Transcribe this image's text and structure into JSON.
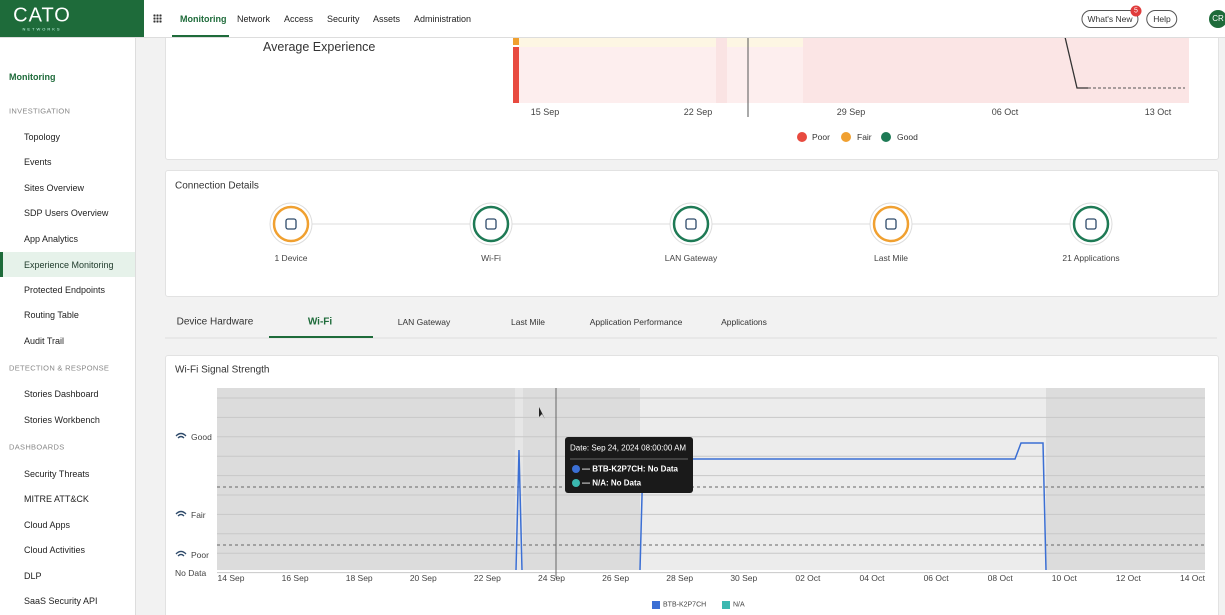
{
  "header": {
    "logo": "CATO",
    "logo_sub": "NETWORKS",
    "nav": [
      "Monitoring",
      "Network",
      "Access",
      "Security",
      "Assets",
      "Administration"
    ],
    "whats_new": "What's New",
    "badge": "5",
    "help": "Help",
    "avatar": "CR"
  },
  "sidebar": {
    "title": "Monitoring",
    "sections": [
      {
        "label": "INVESTIGATION",
        "items": [
          "Topology",
          "Events",
          "Sites Overview",
          "SDP Users Overview",
          "App Analytics",
          "Experience Monitoring",
          "Protected Endpoints",
          "Routing Table",
          "Audit Trail"
        ]
      },
      {
        "label": "DETECTION & RESPONSE",
        "items": [
          "Stories Dashboard",
          "Stories Workbench"
        ]
      },
      {
        "label": "DASHBOARDS",
        "items": [
          "Security Threats",
          "MITRE ATT&CK",
          "Cloud Apps",
          "Cloud Activities",
          "DLP",
          "SaaS Security API"
        ]
      }
    ]
  },
  "experience": {
    "title": "Average Experience",
    "x_labels": [
      "15 Sep",
      "22 Sep",
      "29 Sep",
      "06 Oct",
      "13 Oct"
    ],
    "legend": [
      "Poor",
      "Fair",
      "Good"
    ]
  },
  "connection": {
    "title": "Connection Details",
    "nodes": [
      "1 Device",
      "Wi-Fi",
      "LAN Gateway",
      "Last Mile",
      "21 Applications"
    ]
  },
  "tabs": [
    "Device Hardware",
    "Wi-Fi",
    "LAN Gateway",
    "Last Mile",
    "Application Performance",
    "Applications"
  ],
  "wifi": {
    "title": "Wi-Fi Signal Strength",
    "y_labels": [
      "Good",
      "Fair",
      "Poor",
      "No Data"
    ],
    "x_labels": [
      "14 Sep",
      "16 Sep",
      "18 Sep",
      "20 Sep",
      "22 Sep",
      "24 Sep",
      "26 Sep",
      "28 Sep",
      "30 Sep",
      "02 Oct",
      "04 Oct",
      "06 Oct",
      "08 Oct",
      "10 Oct",
      "12 Oct",
      "14 Oct"
    ],
    "tooltip": {
      "date": "Date: Sep 24, 2024 08:00:00 AM",
      "lines": [
        "— BTB-K2P7CH: No Data",
        "— N/A: No Data"
      ]
    },
    "legend": [
      "BTB-K2P7CH",
      "N/A"
    ]
  }
}
